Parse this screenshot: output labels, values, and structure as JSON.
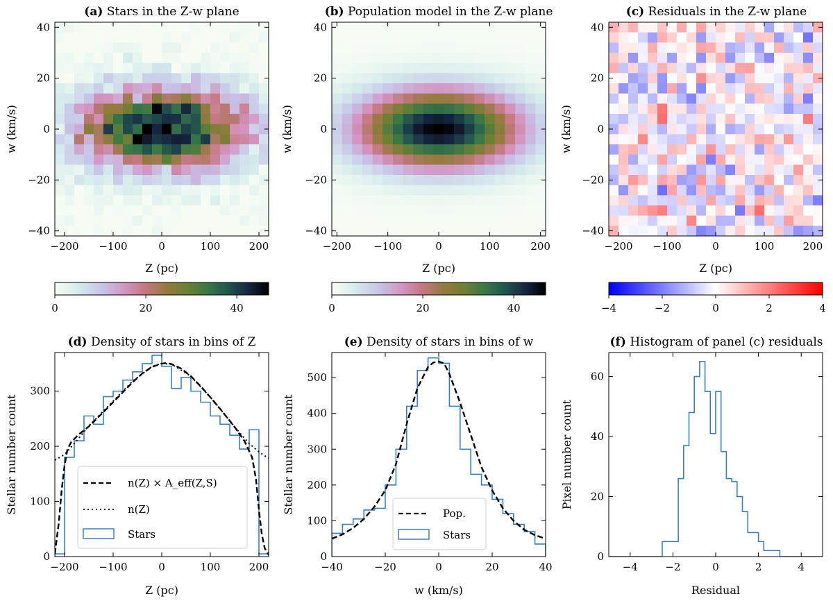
{
  "colors": {
    "hist": "#3a7ebf",
    "model": "#000000"
  },
  "chart_data": [
    {
      "id": "a",
      "type": "heatmap",
      "title_tag": "(a)",
      "title_text": "Stars in the Z-w plane",
      "xlabel": "Z (pc)",
      "ylabel": "w (km/s)",
      "xlim": [
        -220,
        220
      ],
      "ylim": [
        -42,
        42
      ],
      "xticks": [
        -200,
        -100,
        0,
        100,
        200
      ],
      "yticks": [
        -40,
        -20,
        0,
        20,
        40
      ],
      "nx": 22,
      "ny": 21,
      "colormap": "cubehelix_r",
      "colorbar": {
        "range": [
          0,
          47
        ],
        "ticks": [
          0,
          20,
          40
        ]
      },
      "description": "Star counts peaking near Z=0, w=0 (max ~47)"
    },
    {
      "id": "b",
      "type": "heatmap",
      "title_tag": "(b)",
      "title_text": "Population model in the Z-w plane",
      "xlabel": "Z (pc)",
      "ylabel": "w (km/s)",
      "xlim": [
        -210,
        210
      ],
      "ylim": [
        -42,
        42
      ],
      "xticks": [
        -200,
        -100,
        0,
        100,
        200
      ],
      "yticks": [
        -40,
        -20,
        0,
        20,
        40
      ],
      "nx": 21,
      "ny": 21,
      "colormap": "cubehelix_r",
      "model": {
        "sigma_z": 110,
        "sigma_w": 10.5,
        "peak": 47
      },
      "colorbar": {
        "range": [
          0,
          47
        ],
        "ticks": [
          0,
          20,
          40
        ]
      }
    },
    {
      "id": "c",
      "type": "heatmap",
      "title_tag": "(c)",
      "title_text": "Residuals in the Z-w plane",
      "xlabel": "Z (pc)",
      "ylabel": "w (km/s)",
      "xlim": [
        -220,
        220
      ],
      "ylim": [
        -42,
        42
      ],
      "xticks": [
        -200,
        -100,
        0,
        100,
        200
      ],
      "yticks": [
        -40,
        -20,
        0,
        20,
        40
      ],
      "nx": 22,
      "ny": 21,
      "colormap": "bwr",
      "colorbar": {
        "range": [
          -4,
          4
        ],
        "ticks": [
          -4,
          -2,
          0,
          2,
          4
        ]
      }
    },
    {
      "id": "d",
      "type": "line",
      "title_tag": "(d)",
      "title_text": "Density of stars in bins of Z",
      "xlabel": "Z (pc)",
      "ylabel": "Stellar number count",
      "xlim": [
        -220,
        220
      ],
      "ylim": [
        0,
        370
      ],
      "xticks": [
        -200,
        -100,
        0,
        100,
        200
      ],
      "yticks": [
        0,
        100,
        200,
        300
      ],
      "series": [
        {
          "name": "Stars",
          "style": "step",
          "edges": [
            -220,
            -200,
            -180,
            -160,
            -140,
            -120,
            -100,
            -80,
            -60,
            -40,
            -20,
            0,
            20,
            40,
            60,
            80,
            100,
            120,
            140,
            160,
            180,
            200,
            220
          ],
          "values": [
            5,
            180,
            210,
            255,
            240,
            290,
            300,
            320,
            335,
            350,
            365,
            345,
            305,
            325,
            300,
            280,
            255,
            240,
            220,
            195,
            230,
            5
          ]
        },
        {
          "name": "n(Z) × A_eff(Z,S)",
          "style": "dashed",
          "x": [
            -220,
            -212,
            -206,
            -200,
            -194,
            -186,
            -170,
            -150,
            -120,
            -100,
            -80,
            -60,
            -40,
            -20,
            0,
            10,
            20,
            40,
            60,
            80,
            100,
            120,
            150,
            170,
            186,
            194,
            200,
            206,
            212,
            220
          ],
          "y": [
            5,
            60,
            120,
            165,
            195,
            208,
            222,
            236,
            262,
            280,
            298,
            316,
            332,
            344,
            350,
            351,
            349,
            341,
            327,
            309,
            289,
            268,
            235,
            210,
            180,
            140,
            85,
            40,
            15,
            3
          ]
        },
        {
          "name": "n(Z)",
          "style": "dotted",
          "x": [
            -220,
            -200,
            -180,
            -150,
            -120,
            -100,
            -60,
            -20,
            0,
            20,
            60,
            100,
            120,
            150,
            180,
            200,
            220
          ],
          "y": [
            175,
            185,
            205,
            237,
            264,
            282,
            318,
            345,
            350,
            349,
            327,
            289,
            268,
            235,
            205,
            190,
            178
          ]
        }
      ],
      "legend": [
        "n(Z) × A_eff(Z,S)",
        "n(Z)",
        "Stars"
      ]
    },
    {
      "id": "e",
      "type": "line",
      "title_tag": "(e)",
      "title_text": "Density of stars in bins of w",
      "xlabel": "w (km/s)",
      "ylabel": "Stellar number count",
      "xlim": [
        -40,
        40
      ],
      "ylim": [
        0,
        570
      ],
      "xticks": [
        -40,
        -20,
        0,
        20,
        40
      ],
      "yticks": [
        0,
        100,
        200,
        300,
        400,
        500
      ],
      "series": [
        {
          "name": "Stars",
          "style": "step",
          "edges": [
            -40,
            -36,
            -32,
            -28,
            -24,
            -20,
            -16,
            -12,
            -8,
            -4,
            0,
            4,
            8,
            12,
            16,
            20,
            24,
            28,
            32,
            36,
            40
          ],
          "values": [
            65,
            90,
            105,
            130,
            135,
            200,
            300,
            420,
            520,
            555,
            540,
            420,
            300,
            230,
            200,
            160,
            120,
            90,
            70,
            35
          ]
        },
        {
          "name": "Pop.",
          "style": "dashed",
          "x": [
            -40,
            -36,
            -32,
            -28,
            -24,
            -20,
            -16,
            -12,
            -8,
            -4,
            -2,
            0,
            2,
            4,
            8,
            12,
            16,
            20,
            24,
            28,
            32,
            36,
            40
          ],
          "y": [
            50,
            62,
            80,
            105,
            140,
            185,
            258,
            370,
            470,
            530,
            542,
            545,
            540,
            510,
            430,
            340,
            250,
            185,
            135,
            100,
            75,
            60,
            50
          ]
        }
      ],
      "legend": [
        "Pop.",
        "Stars"
      ]
    },
    {
      "id": "f",
      "type": "line",
      "title_tag": "(f)",
      "title_text": "Histogram of panel (c) residuals",
      "xlabel": "Residual",
      "ylabel": "Pixel number count",
      "xlim": [
        -5,
        5
      ],
      "ylim": [
        0,
        68
      ],
      "xticks": [
        -4,
        -2,
        0,
        2,
        4
      ],
      "yticks": [
        0,
        20,
        40,
        60
      ],
      "series": [
        {
          "name": "Residual histogram",
          "style": "step",
          "edges": [
            -5,
            -4.5,
            -4,
            -3.5,
            -3,
            -2.5,
            -2,
            -1.75,
            -1.5,
            -1.25,
            -1,
            -0.75,
            -0.5,
            -0.25,
            0,
            0.25,
            0.5,
            0.75,
            1,
            1.25,
            1.5,
            1.75,
            2,
            2.25,
            2.5,
            3,
            3.5,
            4,
            4.5,
            5
          ],
          "values": [
            0,
            0,
            0,
            0,
            0,
            5,
            5,
            26,
            37,
            48,
            60,
            65,
            55,
            41,
            55,
            35,
            26,
            25,
            20,
            15,
            8,
            8,
            5,
            2,
            2,
            0,
            0,
            0,
            0
          ]
        }
      ]
    }
  ]
}
